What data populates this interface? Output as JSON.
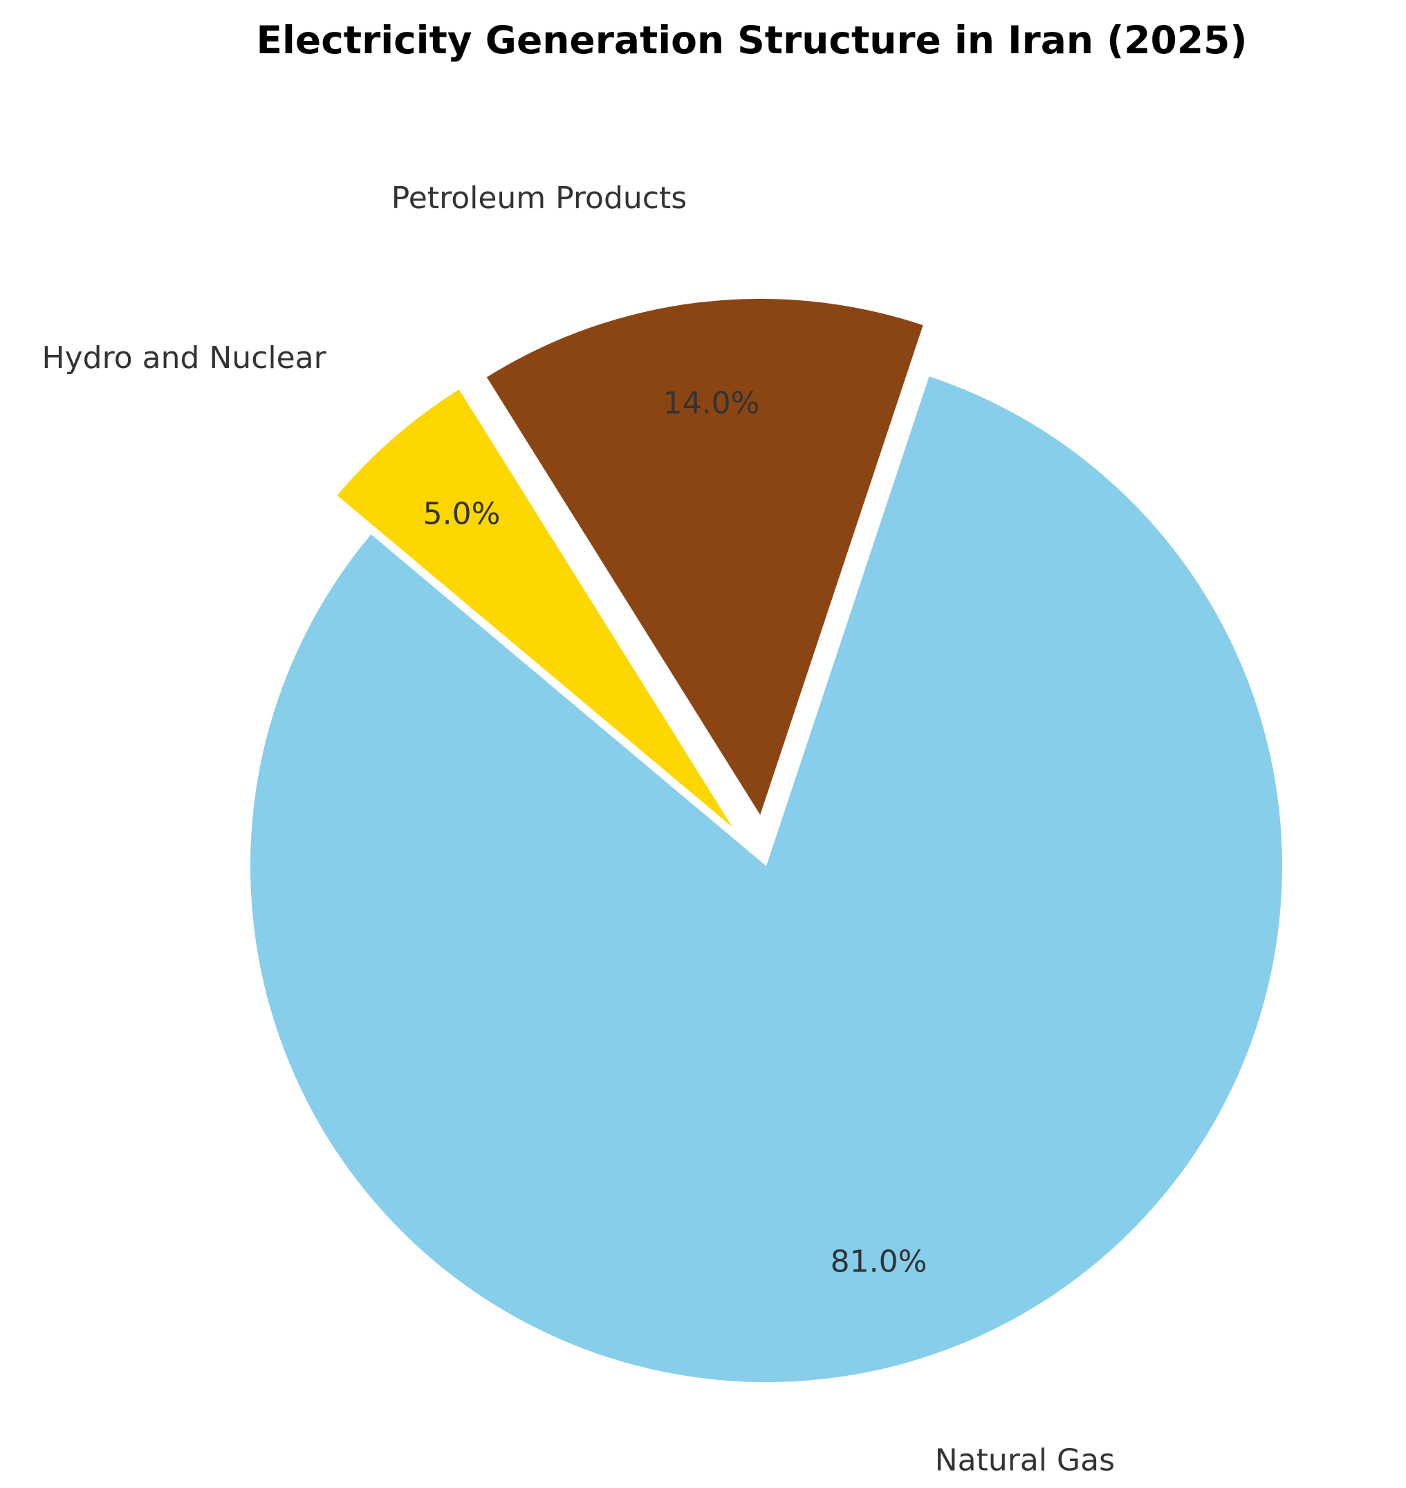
{
  "chart_data": {
    "type": "pie",
    "title": "Electricity Generation Structure in Iran (2025)",
    "categories": [
      "Natural Gas",
      "Petroleum Products",
      "Hydro and Nuclear"
    ],
    "values": [
      81,
      14,
      5
    ],
    "value_labels": [
      "81.0%",
      "14.0%",
      "5.0%"
    ],
    "colors": [
      "#87ceeb",
      "#8b4513",
      "#ffd700"
    ],
    "explode": [
      0,
      0.1,
      0.1
    ],
    "startangle": 140
  }
}
